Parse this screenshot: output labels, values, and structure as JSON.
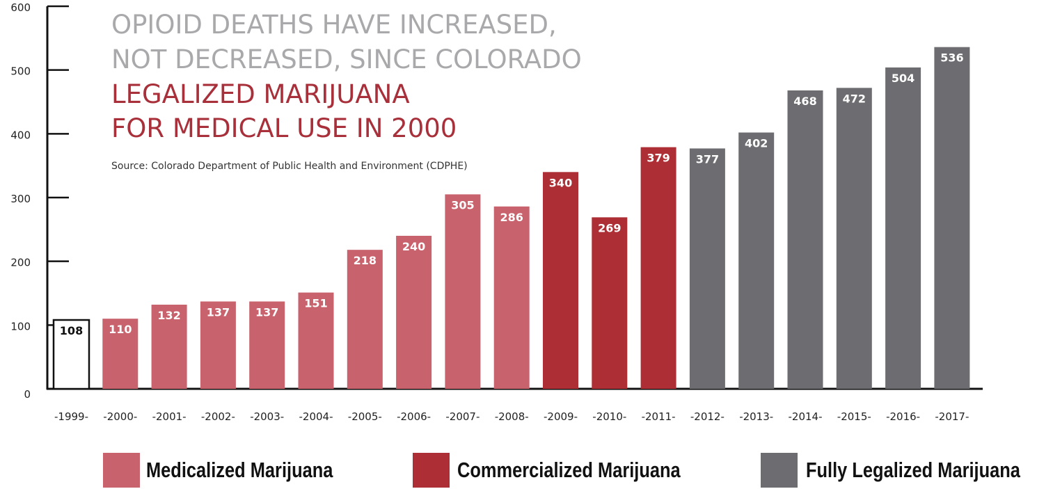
{
  "chart_data": {
    "type": "bar",
    "title_lines_gray": [
      "OPIOID DEATHS HAVE INCREASED,",
      "NOT DECREASED, SINCE COLORADO"
    ],
    "title_lines_red": [
      "LEGALIZED MARIJUANA",
      "FOR MEDICAL USE IN 2000"
    ],
    "source": "Source: Colorado Department of Public Health and Environment (CDPHE)",
    "categories": [
      "-1999-",
      "-2000-",
      "-2001-",
      "-2002-",
      "-2003-",
      "-2004-",
      "-2005-",
      "-2006-",
      "-2007-",
      "-2008-",
      "-2009-",
      "-2010-",
      "-2011-",
      "-2012-",
      "-2013-",
      "-2014-",
      "-2015-",
      "-2016-",
      "-2017-"
    ],
    "values": [
      108,
      110,
      132,
      137,
      137,
      151,
      218,
      240,
      305,
      286,
      340,
      269,
      379,
      377,
      402,
      468,
      472,
      504,
      536
    ],
    "value_labels": [
      "108",
      "110",
      "132",
      "137",
      "137",
      "151",
      "218",
      "240",
      "305",
      "286",
      "340",
      "269",
      "379",
      "377",
      "402",
      "468",
      "472",
      "504",
      "536"
    ],
    "bar_groups": [
      "none",
      "medicalized",
      "medicalized",
      "medicalized",
      "medicalized",
      "medicalized",
      "medicalized",
      "medicalized",
      "medicalized",
      "medicalized",
      "commercialized",
      "commercialized",
      "commercialized",
      "legalized",
      "legalized",
      "legalized",
      "legalized",
      "legalized",
      "legalized"
    ],
    "yticks": [
      "0",
      "100",
      "200",
      "300",
      "400",
      "500",
      "600"
    ],
    "ylim": [
      0,
      600
    ],
    "grid": false,
    "legend_position": "bottom",
    "colors": {
      "medicalized": "#c8626c",
      "commercialized": "#ad2f35",
      "legalized": "#6d6d71",
      "none": "#ffffff",
      "title_gray": "#a9a9ab",
      "title_red": "#a8303b"
    }
  },
  "legend": {
    "items": [
      {
        "key": "medicalized",
        "label": "Medicalized Marijuana"
      },
      {
        "key": "commercialized",
        "label": "Commercialized Marijuana"
      },
      {
        "key": "legalized",
        "label": "Fully Legalized Marijuana"
      }
    ]
  }
}
